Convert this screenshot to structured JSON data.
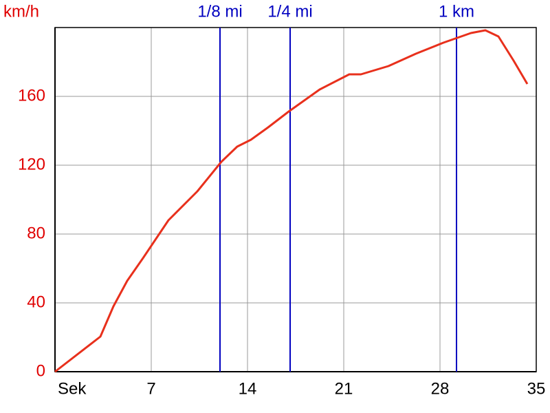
{
  "chart_data": {
    "type": "line",
    "x_label": "Sek",
    "y_label": "km/h",
    "x": [
      0,
      3.3,
      4.25,
      5.25,
      6.4,
      8.25,
      10.35,
      12.1,
      13.25,
      14.25,
      15.5,
      17,
      19.25,
      21.4,
      22.25,
      24.25,
      26.25,
      28.25,
      30.25,
      31.3,
      32.25,
      33.35,
      34.35
    ],
    "series": [
      {
        "color": "#e8301c",
        "values": [
          0,
          20.4,
          38,
          52.8,
          66,
          88,
          104.8,
          122,
          130.8,
          134.8,
          142,
          151.2,
          164,
          172.8,
          172.8,
          177.6,
          184.8,
          191.2,
          196.8,
          198.4,
          194.8,
          180.8,
          167.2
        ]
      }
    ],
    "markers": [
      {
        "label": "1/8 mi",
        "x": 12
      },
      {
        "label": "1/4 mi",
        "x": 17.1
      },
      {
        "label": "1 km",
        "x": 29.2
      }
    ],
    "marker_color": "#0000c0",
    "xlim": [
      0,
      35
    ],
    "xticks": [
      7,
      14,
      21,
      28,
      35
    ],
    "ylim": [
      0,
      200
    ],
    "yticks": [
      0,
      40,
      80,
      120,
      160
    ],
    "grid": true
  }
}
